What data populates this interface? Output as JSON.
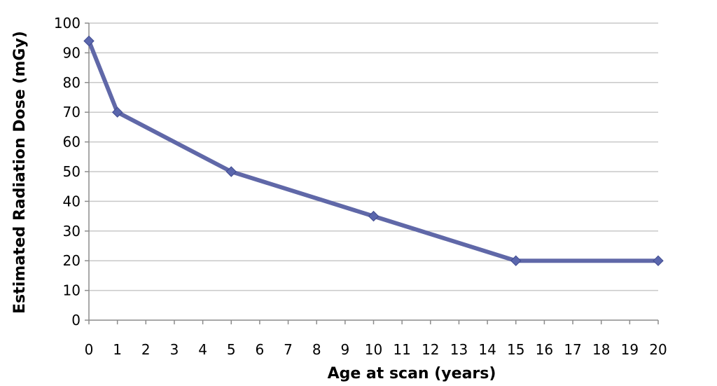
{
  "chart_data": {
    "type": "line",
    "title": "",
    "xlabel": "Age at scan (years)",
    "ylabel": "Estimated Radiation Dose (mGy)",
    "xlim": [
      0,
      20
    ],
    "ylim": [
      0,
      100
    ],
    "xticks": [
      0,
      1,
      2,
      3,
      4,
      5,
      6,
      7,
      8,
      9,
      10,
      11,
      12,
      13,
      14,
      15,
      16,
      17,
      18,
      19,
      20
    ],
    "yticks": [
      0,
      10,
      20,
      30,
      40,
      50,
      60,
      70,
      80,
      90,
      100
    ],
    "grid": "horizontal",
    "legend": "none",
    "series": [
      {
        "color": "#6068a8",
        "marker": "diamond",
        "x": [
          0,
          1,
          5,
          10,
          15,
          20
        ],
        "y": [
          94,
          70,
          50,
          35,
          20,
          20
        ]
      }
    ]
  }
}
